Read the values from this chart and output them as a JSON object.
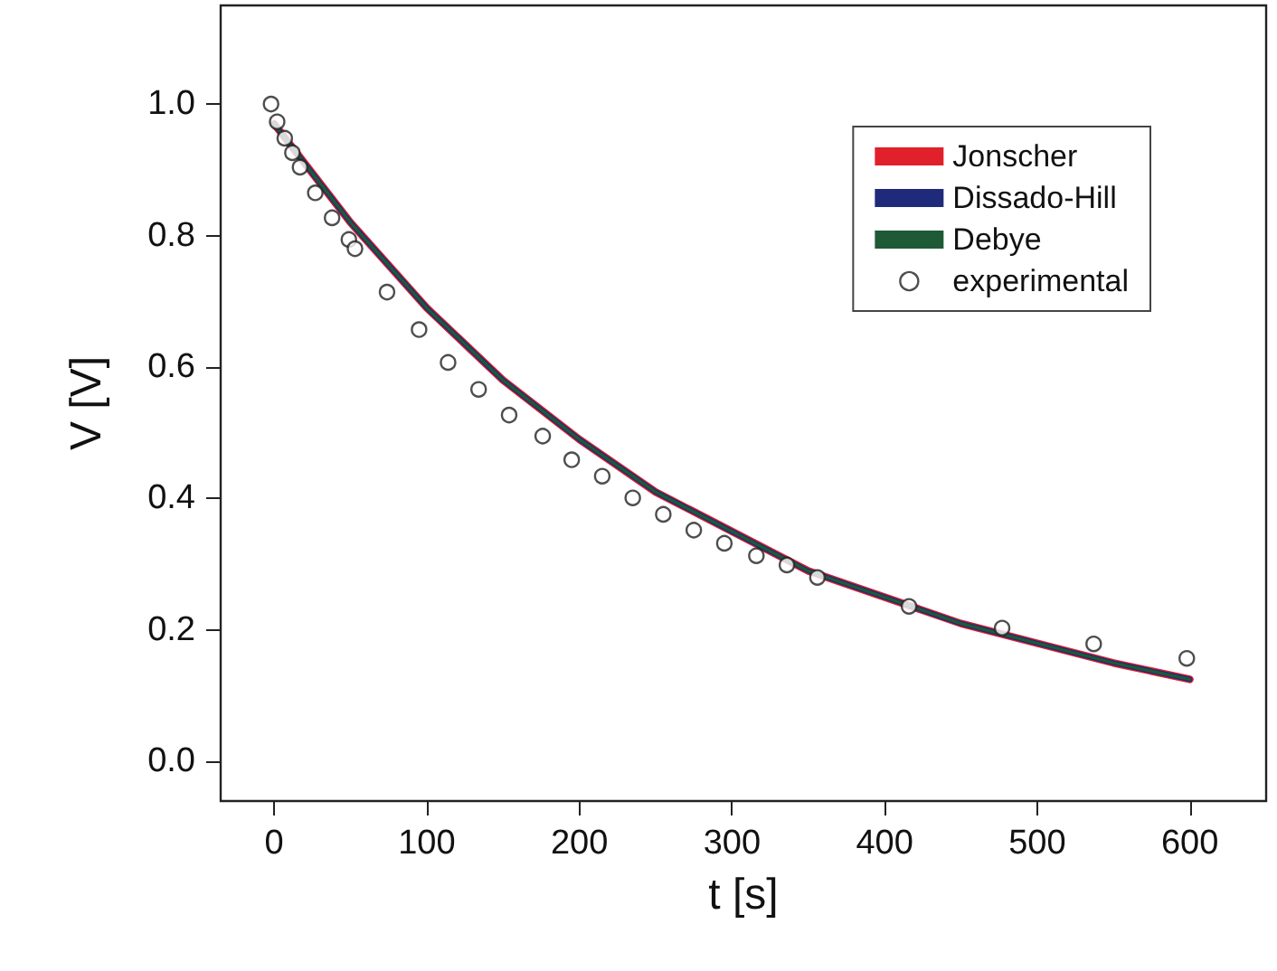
{
  "chart_data": {
    "type": "line",
    "xlabel": "t [s]",
    "ylabel": "V [V]",
    "xlim": [
      -35,
      650
    ],
    "xticks": [
      0,
      100,
      200,
      300,
      400,
      500,
      600
    ],
    "ylim": [
      -0.06,
      1.15
    ],
    "yticks": [
      {
        "value": 0,
        "label": "0.0"
      },
      0.2,
      0.4,
      0.6,
      0.8,
      {
        "value": 1,
        "label": "1.0"
      }
    ],
    "grid": false,
    "legend": "top right",
    "marker": "none",
    "line_style": "solid",
    "series": [
      {
        "name": "Jonscher",
        "color": "#e0202a",
        "x": [
          0,
          50,
          100,
          150,
          200,
          250,
          300,
          350,
          400,
          450,
          500,
          550,
          600
        ],
        "values": [
          0.97,
          0.82,
          0.69,
          0.58,
          0.49,
          0.41,
          0.35,
          0.29,
          0.25,
          0.21,
          0.18,
          0.15,
          0.125
        ]
      },
      {
        "name": "Dissado-Hill",
        "color": "#1f2a7a",
        "x": [
          0,
          50,
          100,
          150,
          200,
          250,
          300,
          350,
          400,
          450,
          500,
          550,
          600
        ],
        "values": [
          0.97,
          0.82,
          0.69,
          0.58,
          0.49,
          0.41,
          0.35,
          0.29,
          0.25,
          0.21,
          0.18,
          0.15,
          0.125
        ]
      },
      {
        "name": "Debye",
        "color": "#1e5a36",
        "x": [
          0,
          50,
          100,
          150,
          200,
          250,
          300,
          350,
          400,
          450,
          500,
          550,
          600
        ],
        "values": [
          0.97,
          0.82,
          0.69,
          0.58,
          0.49,
          0.41,
          0.35,
          0.29,
          0.25,
          0.21,
          0.18,
          0.15,
          0.125
        ]
      },
      {
        "name": "experimental",
        "type": "scatter",
        "marker": "circle",
        "color": "#222222",
        "x": [
          -2,
          2,
          7,
          12,
          17,
          27,
          38,
          49,
          53,
          74,
          95,
          114,
          134,
          154,
          176,
          195,
          215,
          235,
          255,
          275,
          295,
          316,
          336,
          356,
          416,
          477,
          537,
          598
        ],
        "values": [
          1.0,
          0.973,
          0.948,
          0.926,
          0.904,
          0.865,
          0.827,
          0.794,
          0.78,
          0.714,
          0.657,
          0.607,
          0.566,
          0.527,
          0.495,
          0.459,
          0.434,
          0.401,
          0.376,
          0.352,
          0.332,
          0.313,
          0.299,
          0.28,
          0.236,
          0.203,
          0.179,
          0.157
        ]
      }
    ]
  }
}
